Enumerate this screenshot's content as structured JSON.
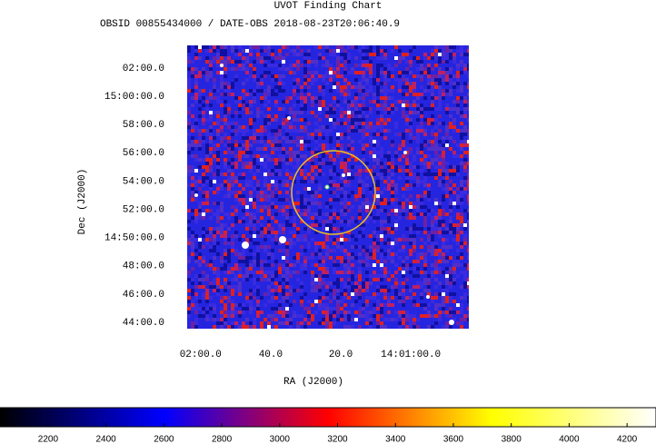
{
  "chart_data": {
    "type": "image",
    "title": "UVOT Finding Chart",
    "subtitle": "OBSID 00855434000 / DATE-OBS 2018-08-23T20:06:40.9",
    "x_label": "RA (J2000)",
    "y_label": "Dec (J2000)",
    "xlim": [
      210.516,
      210.181
    ],
    "xticks": [
      {
        "value": 210.5,
        "label": "02:00.0"
      },
      {
        "value": 210.41667,
        "label": "40.0"
      },
      {
        "value": 210.33333,
        "label": "20.0"
      },
      {
        "value": 210.25,
        "label": "14:01:00.0"
      }
    ],
    "ylim": [
      14.7258,
      15.0601
    ],
    "yticks": [
      {
        "value": 15.03333,
        "label": "02:00.0"
      },
      {
        "value": 15.0,
        "label": "15:00:00.0"
      },
      {
        "value": 14.96667,
        "label": "58:00.0"
      },
      {
        "value": 14.93333,
        "label": "56:00.0"
      },
      {
        "value": 14.9,
        "label": "54:00.0"
      },
      {
        "value": 14.86667,
        "label": "52:00.0"
      },
      {
        "value": 14.83333,
        "label": "14:50:00.0"
      },
      {
        "value": 14.8,
        "label": "48:00.0"
      },
      {
        "value": 14.76667,
        "label": "46:00.0"
      },
      {
        "value": 14.73333,
        "label": "44:00.0"
      }
    ],
    "colorbar": {
      "clim": [
        2034,
        4300
      ],
      "ticks": [
        2200,
        2400,
        2600,
        2800,
        3000,
        3200,
        3400,
        3600,
        3800,
        4000,
        4200
      ],
      "colormap": [
        "#000000",
        "#0000ff",
        "#ff0000",
        "#ffff00",
        "#ffffff"
      ]
    }
  }
}
